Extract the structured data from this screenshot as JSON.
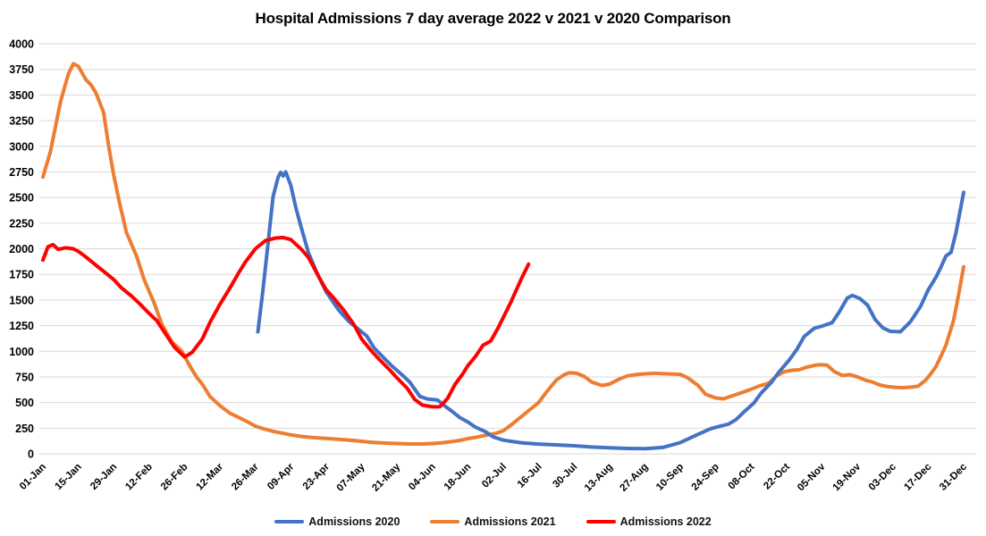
{
  "chart_data": {
    "type": "line",
    "title": "Hospital Admissions 7 day average 2022 v 2021 v 2020 Comparison",
    "grid": "horizontal-only",
    "legend_position": "bottom-center",
    "background": "#ffffff",
    "gridline_color": "#d9d9d9",
    "y_axis": {
      "min": 0,
      "max": 4000,
      "step": 250
    },
    "x_axis": {
      "domain_days": [
        1,
        365
      ],
      "tick_days": [
        1,
        15,
        29,
        43,
        57,
        71,
        85,
        99,
        113,
        127,
        141,
        155,
        169,
        183,
        197,
        211,
        225,
        239,
        253,
        267,
        281,
        295,
        309,
        323,
        337,
        351,
        365
      ],
      "tick_labels": [
        "01-Jan",
        "15-Jan",
        "29-Jan",
        "12-Feb",
        "26-Feb",
        "12-Mar",
        "26-Mar",
        "09-Apr",
        "23-Apr",
        "07-May",
        "21-May",
        "04-Jun",
        "18-Jun",
        "02-Jul",
        "16-Jul",
        "30-Jul",
        "13-Aug",
        "27-Aug",
        "10-Sep",
        "24-Sep",
        "08-Oct",
        "22-Oct",
        "05-Nov",
        "19-Nov",
        "03-Dec",
        "17-Dec",
        "31-Dec"
      ]
    },
    "draw_order": [
      1,
      0,
      2
    ],
    "series": [
      {
        "name": "Admissions 2020",
        "color": "#4472C4",
        "points": [
          [
            86,
            1190
          ],
          [
            88,
            1600
          ],
          [
            90,
            2050
          ],
          [
            92,
            2510
          ],
          [
            94,
            2700
          ],
          [
            95,
            2745
          ],
          [
            96,
            2710
          ],
          [
            97,
            2750
          ],
          [
            99,
            2620
          ],
          [
            101,
            2400
          ],
          [
            103,
            2220
          ],
          [
            106,
            1960
          ],
          [
            110,
            1730
          ],
          [
            113,
            1580
          ],
          [
            116,
            1470
          ],
          [
            118,
            1400
          ],
          [
            122,
            1290
          ],
          [
            125,
            1230
          ],
          [
            129,
            1150
          ],
          [
            132,
            1030
          ],
          [
            136,
            930
          ],
          [
            139,
            856
          ],
          [
            143,
            770
          ],
          [
            146,
            700
          ],
          [
            150,
            560
          ],
          [
            153,
            535
          ],
          [
            157,
            525
          ],
          [
            160,
            465
          ],
          [
            163,
            410
          ],
          [
            166,
            350
          ],
          [
            169,
            310
          ],
          [
            172,
            260
          ],
          [
            176,
            215
          ],
          [
            179,
            165
          ],
          [
            183,
            133
          ],
          [
            190,
            108
          ],
          [
            197,
            95
          ],
          [
            204,
            87
          ],
          [
            211,
            78
          ],
          [
            218,
            66
          ],
          [
            225,
            58
          ],
          [
            232,
            52
          ],
          [
            239,
            50
          ],
          [
            246,
            62
          ],
          [
            253,
            110
          ],
          [
            260,
            190
          ],
          [
            265,
            245
          ],
          [
            269,
            272
          ],
          [
            272,
            289
          ],
          [
            275,
            333
          ],
          [
            278,
            405
          ],
          [
            282,
            493
          ],
          [
            285,
            594
          ],
          [
            289,
            696
          ],
          [
            292,
            798
          ],
          [
            296,
            914
          ],
          [
            299,
            1015
          ],
          [
            302,
            1145
          ],
          [
            306,
            1225
          ],
          [
            309,
            1245
          ],
          [
            313,
            1280
          ],
          [
            316,
            1390
          ],
          [
            319,
            1520
          ],
          [
            321,
            1545
          ],
          [
            324,
            1515
          ],
          [
            327,
            1450
          ],
          [
            330,
            1310
          ],
          [
            333,
            1230
          ],
          [
            336,
            1195
          ],
          [
            340,
            1190
          ],
          [
            344,
            1290
          ],
          [
            348,
            1440
          ],
          [
            351,
            1600
          ],
          [
            354,
            1720
          ],
          [
            356,
            1820
          ],
          [
            358,
            1930
          ],
          [
            360,
            1965
          ],
          [
            362,
            2160
          ],
          [
            365,
            2550
          ]
        ]
      },
      {
        "name": "Admissions 2021",
        "color": "#ED7D31",
        "points": [
          [
            1,
            2700
          ],
          [
            4,
            2950
          ],
          [
            8,
            3440
          ],
          [
            11,
            3700
          ],
          [
            13,
            3805
          ],
          [
            15,
            3780
          ],
          [
            18,
            3650
          ],
          [
            20,
            3600
          ],
          [
            22,
            3520
          ],
          [
            25,
            3330
          ],
          [
            27,
            3000
          ],
          [
            29,
            2720
          ],
          [
            31,
            2480
          ],
          [
            34,
            2160
          ],
          [
            38,
            1930
          ],
          [
            41,
            1700
          ],
          [
            45,
            1470
          ],
          [
            48,
            1265
          ],
          [
            52,
            1090
          ],
          [
            56,
            1000
          ],
          [
            59,
            860
          ],
          [
            62,
            740
          ],
          [
            64,
            680
          ],
          [
            67,
            560
          ],
          [
            71,
            470
          ],
          [
            75,
            395
          ],
          [
            78,
            360
          ],
          [
            82,
            310
          ],
          [
            85,
            270
          ],
          [
            88,
            246
          ],
          [
            92,
            220
          ],
          [
            96,
            200
          ],
          [
            99,
            185
          ],
          [
            103,
            170
          ],
          [
            106,
            162
          ],
          [
            110,
            155
          ],
          [
            113,
            150
          ],
          [
            117,
            143
          ],
          [
            120,
            138
          ],
          [
            124,
            130
          ],
          [
            127,
            122
          ],
          [
            131,
            112
          ],
          [
            134,
            108
          ],
          [
            138,
            103
          ],
          [
            141,
            100
          ],
          [
            145,
            97
          ],
          [
            148,
            96
          ],
          [
            152,
            97
          ],
          [
            155,
            100
          ],
          [
            159,
            108
          ],
          [
            162,
            118
          ],
          [
            166,
            132
          ],
          [
            169,
            148
          ],
          [
            172,
            160
          ],
          [
            176,
            180
          ],
          [
            180,
            200
          ],
          [
            183,
            225
          ],
          [
            186,
            280
          ],
          [
            190,
            360
          ],
          [
            194,
            440
          ],
          [
            197,
            500
          ],
          [
            200,
            600
          ],
          [
            204,
            720
          ],
          [
            207,
            770
          ],
          [
            209,
            790
          ],
          [
            212,
            785
          ],
          [
            215,
            755
          ],
          [
            218,
            700
          ],
          [
            222,
            667
          ],
          [
            225,
            680
          ],
          [
            229,
            730
          ],
          [
            232,
            760
          ],
          [
            236,
            775
          ],
          [
            239,
            780
          ],
          [
            243,
            785
          ],
          [
            246,
            782
          ],
          [
            250,
            778
          ],
          [
            253,
            775
          ],
          [
            256,
            740
          ],
          [
            260,
            667
          ],
          [
            263,
            580
          ],
          [
            267,
            545
          ],
          [
            270,
            536
          ],
          [
            274,
            570
          ],
          [
            277,
            594
          ],
          [
            281,
            630
          ],
          [
            284,
            660
          ],
          [
            288,
            690
          ],
          [
            291,
            760
          ],
          [
            294,
            800
          ],
          [
            297,
            815
          ],
          [
            300,
            820
          ],
          [
            303,
            845
          ],
          [
            306,
            862
          ],
          [
            308,
            870
          ],
          [
            311,
            865
          ],
          [
            314,
            800
          ],
          [
            317,
            765
          ],
          [
            320,
            772
          ],
          [
            323,
            750
          ],
          [
            326,
            720
          ],
          [
            329,
            700
          ],
          [
            332,
            670
          ],
          [
            335,
            655
          ],
          [
            338,
            648
          ],
          [
            341,
            645
          ],
          [
            344,
            650
          ],
          [
            347,
            660
          ],
          [
            350,
            720
          ],
          [
            352,
            780
          ],
          [
            354,
            850
          ],
          [
            356,
            950
          ],
          [
            358,
            1060
          ],
          [
            361,
            1300
          ],
          [
            363,
            1550
          ],
          [
            365,
            1825
          ]
        ]
      },
      {
        "name": "Admissions 2022",
        "color": "#FF0000",
        "points": [
          [
            1,
            1890
          ],
          [
            3,
            2020
          ],
          [
            5,
            2040
          ],
          [
            7,
            1995
          ],
          [
            10,
            2010
          ],
          [
            13,
            2000
          ],
          [
            15,
            1975
          ],
          [
            18,
            1920
          ],
          [
            22,
            1840
          ],
          [
            25,
            1780
          ],
          [
            29,
            1700
          ],
          [
            32,
            1620
          ],
          [
            36,
            1540
          ],
          [
            39,
            1470
          ],
          [
            43,
            1370
          ],
          [
            46,
            1300
          ],
          [
            50,
            1150
          ],
          [
            53,
            1040
          ],
          [
            57,
            945
          ],
          [
            60,
            990
          ],
          [
            64,
            1120
          ],
          [
            67,
            1280
          ],
          [
            71,
            1460
          ],
          [
            75,
            1620
          ],
          [
            78,
            1750
          ],
          [
            81,
            1870
          ],
          [
            85,
            2000
          ],
          [
            89,
            2080
          ],
          [
            93,
            2105
          ],
          [
            96,
            2110
          ],
          [
            99,
            2090
          ],
          [
            103,
            2000
          ],
          [
            106,
            1915
          ],
          [
            110,
            1730
          ],
          [
            113,
            1600
          ],
          [
            116,
            1520
          ],
          [
            120,
            1400
          ],
          [
            124,
            1260
          ],
          [
            127,
            1120
          ],
          [
            131,
            1000
          ],
          [
            134,
            920
          ],
          [
            138,
            820
          ],
          [
            141,
            740
          ],
          [
            145,
            640
          ],
          [
            148,
            530
          ],
          [
            151,
            475
          ],
          [
            155,
            458
          ],
          [
            158,
            460
          ],
          [
            161,
            540
          ],
          [
            164,
            680
          ],
          [
            167,
            780
          ],
          [
            169,
            860
          ],
          [
            172,
            950
          ],
          [
            175,
            1060
          ],
          [
            178,
            1100
          ],
          [
            181,
            1230
          ],
          [
            183,
            1330
          ],
          [
            186,
            1480
          ],
          [
            190,
            1700
          ],
          [
            193,
            1850
          ]
        ]
      }
    ]
  }
}
